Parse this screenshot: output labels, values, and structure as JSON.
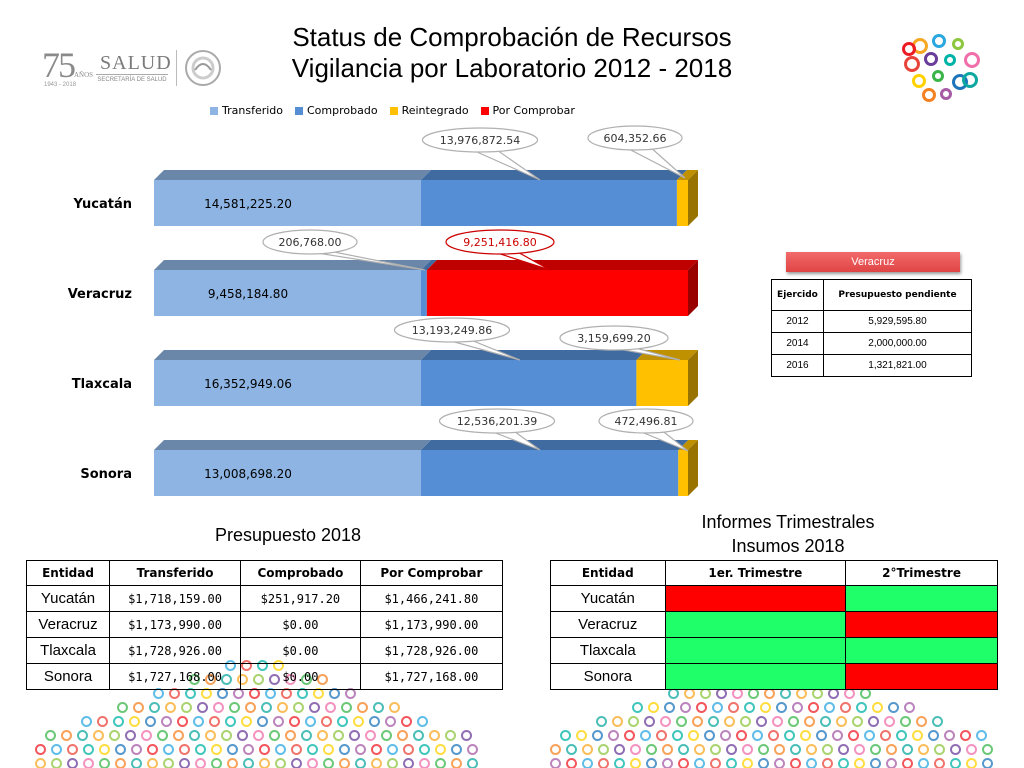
{
  "title": {
    "line1": "Status de Comprobación de Recursos",
    "line2": "Vigilancia por Laboratorio 2012 - 2018"
  },
  "logo": {
    "number": "75",
    "anos": "AÑOS",
    "years": "1943 - 2018",
    "salud": "SALUD",
    "secretaria": "SECRETARÍA DE SALUD"
  },
  "colors": {
    "transferido": "#8db4e2",
    "comprobado": "#558ed5",
    "reintegrado": "#ffc000",
    "por_comprobar": "#ff0000"
  },
  "chart_data": {
    "type": "bar",
    "orientation": "horizontal-stacked-3d",
    "legend_position": "top",
    "categories": [
      "Yucatán",
      "Veracruz",
      "Tlaxcala",
      "Sonora"
    ],
    "series": [
      {
        "name": "Transferido",
        "values": [
          14581225.2,
          9458184.8,
          16352949.06,
          13008698.2
        ]
      },
      {
        "name": "Comprobado",
        "values": [
          13976872.54,
          206768.0,
          13193249.86,
          12536201.39
        ]
      },
      {
        "name": "Reintegrado",
        "values": [
          604352.66,
          0,
          3159699.2,
          472496.81
        ]
      },
      {
        "name": "Por Comprobar",
        "values": [
          0,
          9251416.8,
          0,
          0
        ]
      }
    ],
    "data_labels": {
      "transferido": [
        "14,581,225.20",
        "9,458,184.80",
        "16,352,949.06",
        "13,008,698.20"
      ],
      "callouts": [
        [
          "13,976,872.54",
          "604,352.66"
        ],
        [
          "206,768.00",
          "9,251,416.80"
        ],
        [
          "13,193,249.86",
          "3,159,699.20"
        ],
        [
          "12,536,201.39",
          "472,496.81"
        ]
      ]
    }
  },
  "veracruz_panel": {
    "button": "Veracruz",
    "headers": [
      "Ejercido",
      "Presupuesto pendiente"
    ],
    "rows": [
      [
        "2012",
        "5,929,595.80"
      ],
      [
        "2014",
        "2,000,000.00"
      ],
      [
        "2016",
        "1,321,821.00"
      ]
    ]
  },
  "presupuesto": {
    "title": "Presupuesto 2018",
    "headers": [
      "Entidad",
      "Transferido",
      "Comprobado",
      "Por Comprobar"
    ],
    "rows": [
      [
        "Yucatán",
        "$1,718,159.00",
        "$251,917.20",
        "$1,466,241.80"
      ],
      [
        "Veracruz",
        "$1,173,990.00",
        "$0.00",
        "$1,173,990.00"
      ],
      [
        "Tlaxcala",
        "$1,728,926.00",
        "$0.00",
        "$1,728,926.00"
      ],
      [
        "Sonora",
        "$1,727,168.00",
        "$0.00",
        "$1,727,168.00"
      ]
    ]
  },
  "informes": {
    "title_line1": "Informes Trimestrales",
    "title_line2": "Insumos 2018",
    "headers": [
      "Entidad",
      "1er. Trimestre",
      "2°Trimestre"
    ],
    "rows": [
      {
        "entidad": "Yucatán",
        "t1": "red",
        "t2": "green"
      },
      {
        "entidad": "Veracruz",
        "t1": "green",
        "t2": "red"
      },
      {
        "entidad": "Tlaxcala",
        "t1": "green",
        "t2": "green"
      },
      {
        "entidad": "Sonora",
        "t1": "green",
        "t2": "red"
      }
    ]
  }
}
